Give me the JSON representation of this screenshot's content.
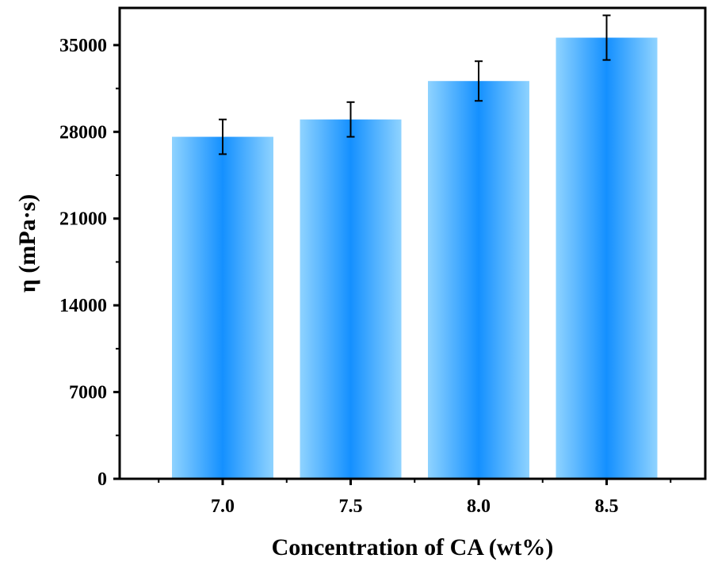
{
  "chart_data": {
    "type": "bar",
    "categories": [
      "7.0",
      "7.5",
      "8.0",
      "8.5"
    ],
    "values": [
      27600,
      29000,
      32100,
      35600
    ],
    "errors": [
      1400,
      1400,
      1600,
      1800
    ],
    "xlabel": "Concentration of CA (wt%)",
    "ylabel": "η (mPa·s)",
    "ylim": [
      0,
      38000
    ],
    "yticks": [
      0,
      7000,
      14000,
      21000,
      28000,
      35000
    ],
    "y_minor_ticks": true,
    "grid": false,
    "legend": "none",
    "colors": {
      "bar_edge": "#8fd3ff",
      "bar_center": "#1490ff",
      "error_bar": "#000000",
      "axis": "#000000"
    }
  }
}
